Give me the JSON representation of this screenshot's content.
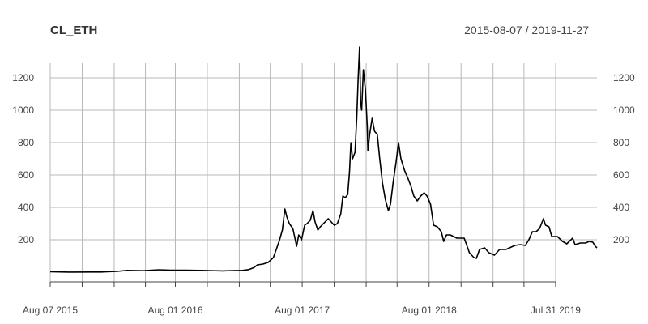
{
  "chart_data": {
    "type": "line",
    "title": "CL_ETH",
    "date_range": "2015-08-07 / 2019-11-27",
    "y_ticks": [
      200,
      400,
      600,
      800,
      1000,
      1200
    ],
    "ylim": [
      -60,
      1390
    ],
    "x_tick_labels": [
      "Aug 07 2015",
      "Aug 01 2016",
      "Aug 01 2017",
      "Aug 01 2018",
      "Jul 31 2019"
    ],
    "x_tick_dates": [
      "2015-08-07",
      "2015-11-07",
      "2016-02-07",
      "2016-05-07",
      "2016-08-01",
      "2016-11-01",
      "2017-02-01",
      "2017-05-01",
      "2017-08-01",
      "2017-11-01",
      "2018-02-01",
      "2018-05-01",
      "2018-08-01",
      "2018-11-01",
      "2019-02-01",
      "2019-05-01",
      "2019-07-31"
    ],
    "x_label_dates": [
      "2015-08-07",
      "2016-08-01",
      "2017-08-01",
      "2018-08-01",
      "2019-07-31"
    ],
    "grid": true,
    "series": [
      {
        "points": [
          [
            "2015-08-07",
            3
          ],
          [
            "2015-10-01",
            0.7
          ],
          [
            "2015-12-01",
            0.9
          ],
          [
            "2016-01-01",
            1
          ],
          [
            "2016-02-15",
            5
          ],
          [
            "2016-03-15",
            11
          ],
          [
            "2016-05-01",
            9
          ],
          [
            "2016-06-15",
            15
          ],
          [
            "2016-07-20",
            12
          ],
          [
            "2016-09-01",
            12
          ],
          [
            "2016-11-01",
            10
          ],
          [
            "2016-12-15",
            8
          ],
          [
            "2017-01-15",
            10
          ],
          [
            "2017-02-10",
            11
          ],
          [
            "2017-02-28",
            16
          ],
          [
            "2017-03-15",
            28
          ],
          [
            "2017-03-25",
            45
          ],
          [
            "2017-04-10",
            50
          ],
          [
            "2017-04-25",
            60
          ],
          [
            "2017-05-10",
            90
          ],
          [
            "2017-05-20",
            150
          ],
          [
            "2017-05-28",
            200
          ],
          [
            "2017-06-05",
            260
          ],
          [
            "2017-06-12",
            390
          ],
          [
            "2017-06-18",
            340
          ],
          [
            "2017-06-25",
            300
          ],
          [
            "2017-07-05",
            270
          ],
          [
            "2017-07-10",
            220
          ],
          [
            "2017-07-16",
            160
          ],
          [
            "2017-07-22",
            230
          ],
          [
            "2017-07-30",
            200
          ],
          [
            "2017-08-08",
            290
          ],
          [
            "2017-08-15",
            300
          ],
          [
            "2017-08-24",
            320
          ],
          [
            "2017-09-01",
            380
          ],
          [
            "2017-09-07",
            310
          ],
          [
            "2017-09-15",
            260
          ],
          [
            "2017-09-22",
            280
          ],
          [
            "2017-10-01",
            300
          ],
          [
            "2017-10-15",
            330
          ],
          [
            "2017-11-01",
            290
          ],
          [
            "2017-11-10",
            300
          ],
          [
            "2017-11-20",
            360
          ],
          [
            "2017-11-26",
            470
          ],
          [
            "2017-12-03",
            460
          ],
          [
            "2017-12-10",
            480
          ],
          [
            "2017-12-15",
            620
          ],
          [
            "2017-12-19",
            800
          ],
          [
            "2017-12-24",
            700
          ],
          [
            "2017-12-31",
            740
          ],
          [
            "2018-01-05",
            960
          ],
          [
            "2018-01-09",
            1200
          ],
          [
            "2018-01-13",
            1390
          ],
          [
            "2018-01-16",
            1050
          ],
          [
            "2018-01-19",
            1000
          ],
          [
            "2018-01-24",
            1250
          ],
          [
            "2018-01-30",
            1120
          ],
          [
            "2018-02-04",
            900
          ],
          [
            "2018-02-06",
            750
          ],
          [
            "2018-02-11",
            850
          ],
          [
            "2018-02-18",
            950
          ],
          [
            "2018-02-25",
            870
          ],
          [
            "2018-03-05",
            850
          ],
          [
            "2018-03-12",
            700
          ],
          [
            "2018-03-20",
            550
          ],
          [
            "2018-03-28",
            450
          ],
          [
            "2018-04-06",
            380
          ],
          [
            "2018-04-12",
            420
          ],
          [
            "2018-04-20",
            560
          ],
          [
            "2018-04-28",
            680
          ],
          [
            "2018-05-05",
            800
          ],
          [
            "2018-05-12",
            700
          ],
          [
            "2018-05-22",
            630
          ],
          [
            "2018-06-01",
            580
          ],
          [
            "2018-06-10",
            530
          ],
          [
            "2018-06-18",
            470
          ],
          [
            "2018-06-28",
            440
          ],
          [
            "2018-07-08",
            470
          ],
          [
            "2018-07-18",
            490
          ],
          [
            "2018-07-26",
            470
          ],
          [
            "2018-08-05",
            420
          ],
          [
            "2018-08-14",
            290
          ],
          [
            "2018-08-25",
            280
          ],
          [
            "2018-09-05",
            250
          ],
          [
            "2018-09-12",
            190
          ],
          [
            "2018-09-20",
            230
          ],
          [
            "2018-10-01",
            230
          ],
          [
            "2018-10-20",
            210
          ],
          [
            "2018-11-10",
            210
          ],
          [
            "2018-11-20",
            150
          ],
          [
            "2018-11-25",
            120
          ],
          [
            "2018-12-08",
            90
          ],
          [
            "2018-12-15",
            85
          ],
          [
            "2018-12-24",
            140
          ],
          [
            "2019-01-08",
            150
          ],
          [
            "2019-01-20",
            120
          ],
          [
            "2019-02-05",
            105
          ],
          [
            "2019-02-20",
            140
          ],
          [
            "2019-03-10",
            140
          ],
          [
            "2019-04-05",
            165
          ],
          [
            "2019-04-20",
            170
          ],
          [
            "2019-05-05",
            165
          ],
          [
            "2019-05-15",
            200
          ],
          [
            "2019-05-25",
            250
          ],
          [
            "2019-06-05",
            250
          ],
          [
            "2019-06-15",
            270
          ],
          [
            "2019-06-26",
            330
          ],
          [
            "2019-07-02",
            290
          ],
          [
            "2019-07-12",
            280
          ],
          [
            "2019-07-20",
            220
          ],
          [
            "2019-08-05",
            220
          ],
          [
            "2019-08-20",
            190
          ],
          [
            "2019-09-01",
            175
          ],
          [
            "2019-09-18",
            210
          ],
          [
            "2019-09-25",
            170
          ],
          [
            "2019-10-10",
            180
          ],
          [
            "2019-10-25",
            180
          ],
          [
            "2019-11-05",
            190
          ],
          [
            "2019-11-15",
            185
          ],
          [
            "2019-11-22",
            160
          ],
          [
            "2019-11-27",
            150
          ]
        ]
      }
    ]
  }
}
